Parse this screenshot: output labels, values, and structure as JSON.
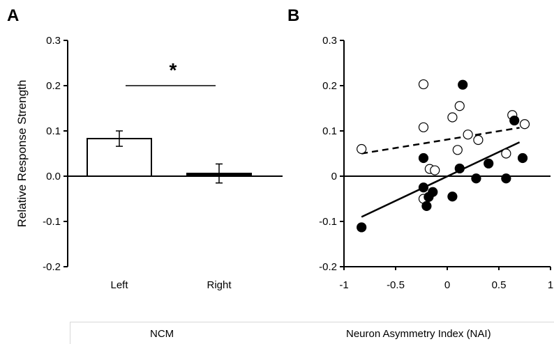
{
  "chart_data": [
    {
      "type": "bar",
      "panel_label": "A",
      "categories": [
        "Left",
        "Right"
      ],
      "values": [
        0.083,
        0.006
      ],
      "errors": [
        0.017,
        0.021
      ],
      "bar_fills": [
        "#ffffff",
        "#000000"
      ],
      "ylabel": "Relative Response Strength",
      "ylim": [
        -0.2,
        0.3
      ],
      "yticks": [
        "0.3",
        "0.2",
        "0.1",
        "0.0",
        "-0.1",
        "-0.2"
      ],
      "significance": "*",
      "footer": "NCM"
    },
    {
      "type": "scatter",
      "panel_label": "B",
      "xlabel": "Neuron Asymmetry Index (NAI)",
      "xlim": [
        -1,
        1
      ],
      "ylim": [
        -0.2,
        0.3
      ],
      "xticks": [
        "-1",
        "-0.5",
        "0",
        "0.5",
        "1"
      ],
      "yticks": [
        "0.3",
        "0.2",
        "0.1",
        "0",
        "-0.1",
        "-0.2"
      ],
      "series": [
        {
          "marker": "open",
          "points": [
            [
              -0.83,
              0.06
            ],
            [
              -0.23,
              0.203
            ],
            [
              -0.23,
              0.108
            ],
            [
              -0.23,
              -0.05
            ],
            [
              -0.17,
              0.016
            ],
            [
              -0.12,
              0.013
            ],
            [
              0.05,
              0.13
            ],
            [
              0.12,
              0.155
            ],
            [
              0.1,
              0.058
            ],
            [
              0.2,
              0.092
            ],
            [
              0.3,
              0.08
            ],
            [
              0.57,
              0.05
            ],
            [
              0.63,
              0.135
            ],
            [
              0.75,
              0.115
            ]
          ],
          "fit": {
            "x": [
              -0.83,
              0.7
            ],
            "y": [
              0.05,
              0.107
            ],
            "style": "dashed"
          }
        },
        {
          "marker": "filled",
          "points": [
            [
              -0.83,
              -0.113
            ],
            [
              -0.23,
              0.04
            ],
            [
              -0.23,
              -0.025
            ],
            [
              -0.2,
              -0.066
            ],
            [
              -0.18,
              -0.046
            ],
            [
              -0.14,
              -0.035
            ],
            [
              0.05,
              -0.045
            ],
            [
              0.12,
              0.017
            ],
            [
              0.15,
              0.202
            ],
            [
              0.28,
              -0.005
            ],
            [
              0.4,
              0.028
            ],
            [
              0.57,
              -0.005
            ],
            [
              0.65,
              0.123
            ],
            [
              0.73,
              0.04
            ]
          ],
          "fit": {
            "x": [
              -0.83,
              0.7
            ],
            "y": [
              -0.09,
              0.075
            ],
            "style": "solid"
          }
        }
      ]
    }
  ]
}
